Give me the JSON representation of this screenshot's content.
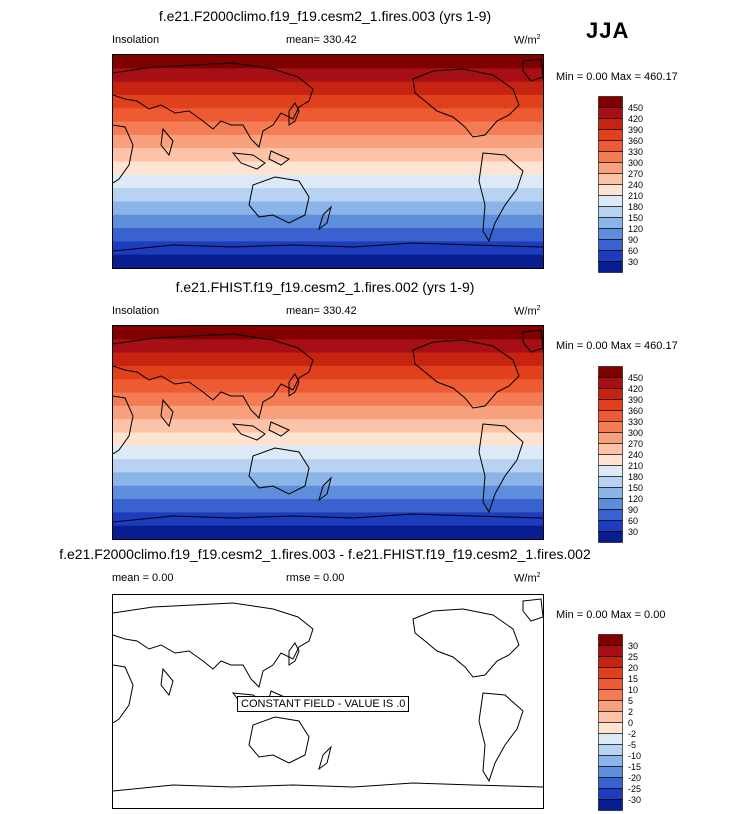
{
  "season": "JJA",
  "panels": [
    {
      "title": "f.e21.F2000climo.f19_f19.cesm2_1.fires.003 (yrs 1-9)",
      "left_label": "Insolation",
      "mid_label": "mean= 330.42",
      "units": "W/m",
      "units_sup": "2",
      "minmax": "Min =   0.00 Max = 460.17",
      "colorbar_labels": [
        "450",
        "420",
        "390",
        "360",
        "330",
        "300",
        "270",
        "240",
        "210",
        "180",
        "150",
        "120",
        "90",
        "60",
        "30"
      ]
    },
    {
      "title": "f.e21.FHIST.f19_f19.cesm2_1.fires.002 (yrs 1-9)",
      "left_label": "Insolation",
      "mid_label": "mean= 330.42",
      "units": "W/m",
      "units_sup": "2",
      "minmax": "Min =   0.00 Max = 460.17",
      "colorbar_labels": [
        "450",
        "420",
        "390",
        "360",
        "330",
        "300",
        "270",
        "240",
        "210",
        "180",
        "150",
        "120",
        "90",
        "60",
        "30"
      ]
    },
    {
      "title": "f.e21.F2000climo.f19_f19.cesm2_1.fires.003 - f.e21.FHIST.f19_f19.cesm2_1.fires.002",
      "left_label": "mean =   0.00",
      "mid_label": "rmse =   0.00",
      "units": "W/m",
      "units_sup": "2",
      "minmax": "Min =   0.00 Max =   0.00",
      "colorbar_labels": [
        "30",
        "25",
        "20",
        "15",
        "10",
        "5",
        "2",
        "0",
        "-2",
        "-5",
        "-10",
        "-15",
        "-20",
        "-25",
        "-30"
      ],
      "note": "CONSTANT FIELD - VALUE IS .0"
    }
  ],
  "colors": {
    "abs_scale": [
      "#800000",
      "#A50F15",
      "#C62410",
      "#E0401C",
      "#EE5A33",
      "#F47C55",
      "#F9A07F",
      "#FCC3A8",
      "#FDE3D0",
      "#DCEAF7",
      "#B7D3F1",
      "#8BB4E8",
      "#5E8DDB",
      "#3A62CF",
      "#1E3CC0",
      "#081E90"
    ],
    "diff_scale": [
      "#800000",
      "#A50F15",
      "#C62410",
      "#E0401C",
      "#EE5A33",
      "#F47C55",
      "#F9A07F",
      "#FCC3A8",
      "#FDE3D0",
      "#DCEAF7",
      "#B7D3F1",
      "#8BB4E8",
      "#5E8DDB",
      "#3A62CF",
      "#1E3CC0",
      "#081E90"
    ]
  }
}
